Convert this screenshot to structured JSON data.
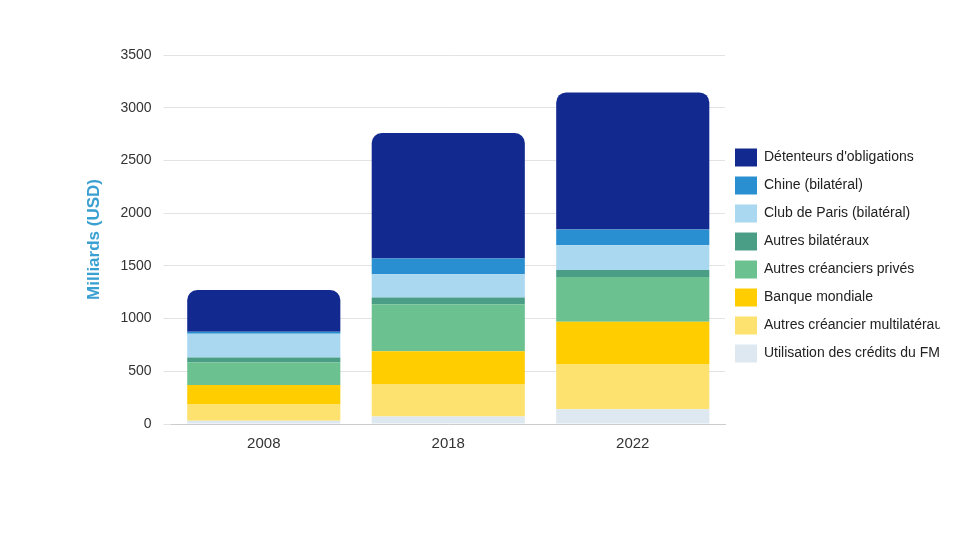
{
  "chart_data": {
    "type": "bar",
    "y_label": "Milliards (USD)",
    "categories": [
      "2008",
      "2018",
      "2022"
    ],
    "series": [
      {
        "name": "Utilisation des crédits du FMI",
        "color": "#dde8f0",
        "values": [
          30,
          70,
          140
        ]
      },
      {
        "name": "Autres créancier multilatéraux",
        "color": "#fde270",
        "values": [
          160,
          310,
          430
        ]
      },
      {
        "name": "Banque mondiale",
        "color": "#ffcd00",
        "values": [
          180,
          310,
          400
        ]
      },
      {
        "name": "Autres créanciers privés",
        "color": "#6cc190",
        "values": [
          215,
          445,
          425
        ]
      },
      {
        "name": "Autres bilatéraux",
        "color": "#4a9e86",
        "values": [
          45,
          65,
          65
        ]
      },
      {
        "name": "Club de Paris (bilatéral)",
        "color": "#a9d8f0",
        "values": [
          225,
          220,
          235
        ]
      },
      {
        "name": "Chine (bilatéral)",
        "color": "#2a8fd0",
        "values": [
          20,
          150,
          150
        ]
      },
      {
        "name": "Détenteurs d'obligations",
        "color": "#122a8f",
        "values": [
          395,
          1190,
          1300
        ]
      }
    ],
    "ylim": [
      0,
      3500
    ],
    "yticks": [
      0,
      500,
      1000,
      1500,
      2000,
      2500,
      3000,
      3500
    ],
    "stacked": true,
    "grid": true,
    "legend": "right"
  }
}
